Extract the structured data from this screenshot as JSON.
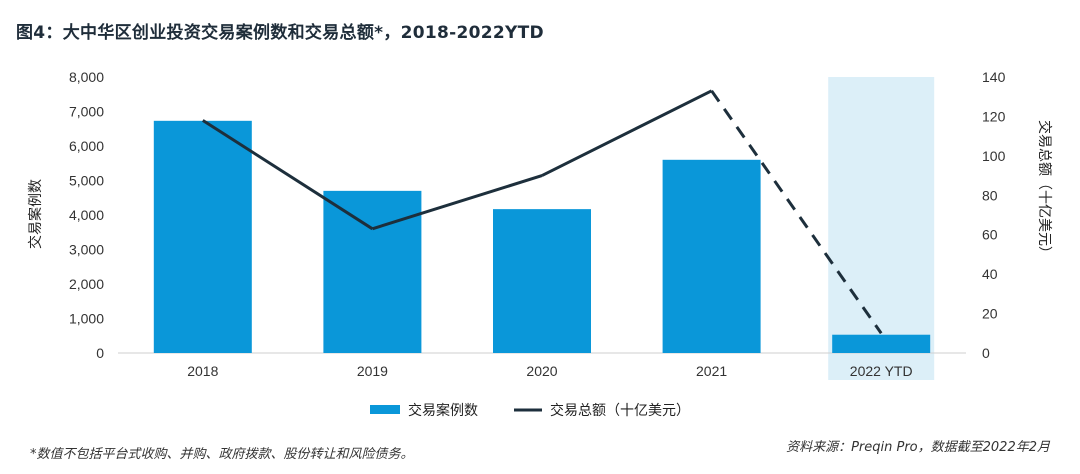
{
  "title": "图4：大中华区创业投资交易案例数和交易总额*，2018-2022YTD",
  "footnote": "*数值不包括平台式收购、并购、政府拨款、股份转让和风险债务。",
  "source": "资料来源：Preqin Pro，数据截至2022年2月",
  "colors": {
    "bar": "#0a97d9",
    "line": "#1d2f3c",
    "highlight": "#dceff8"
  },
  "chart_data": {
    "type": "bar",
    "categories": [
      "2018",
      "2019",
      "2020",
      "2021",
      "2022 YTD"
    ],
    "highlight_category": "2022 YTD",
    "ylabel": "交易案例数",
    "y2label": "交易总额（十亿美元）",
    "ylim": [
      0,
      8000
    ],
    "y2lim": [
      0,
      140
    ],
    "yticks": [
      "8,000",
      "7,000",
      "6,000",
      "5,000",
      "4,000",
      "3,000",
      "2,000",
      "1,000",
      "0"
    ],
    "y2ticks": [
      "140",
      "120",
      "100",
      "80",
      "60",
      "40",
      "20",
      "0"
    ],
    "series": [
      {
        "name": "交易案例数",
        "type": "bar",
        "axis": "left",
        "values": [
          6730,
          4700,
          4170,
          5600,
          530
        ]
      },
      {
        "name": "交易总额（十亿美元）",
        "type": "line",
        "axis": "right",
        "values": [
          118,
          63,
          90,
          133,
          10
        ],
        "dashed_from_index": 3
      }
    ],
    "legend_position": "bottom"
  }
}
